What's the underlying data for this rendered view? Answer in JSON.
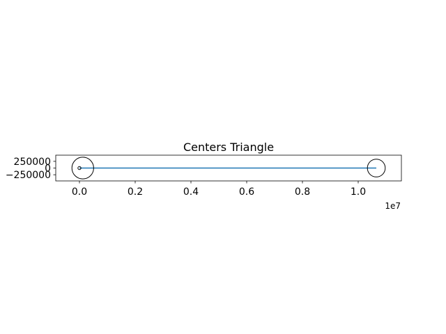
{
  "chart_data": {
    "type": "line",
    "title": "Centers Triangle",
    "xlabel": "",
    "ylabel": "",
    "x_offset_label": "1e7",
    "xlim": [
      -850000,
      11550000
    ],
    "ylim": [
      -480000,
      480000
    ],
    "x_ticks": [
      0,
      2000000,
      4000000,
      6000000,
      8000000,
      10000000
    ],
    "x_tick_labels": [
      "0.0",
      "0.2",
      "0.4",
      "0.6",
      "0.8",
      "1.0"
    ],
    "y_ticks": [
      250000,
      0,
      -250000
    ],
    "y_tick_labels": [
      "250000",
      "0",
      "−250000"
    ],
    "grid": false,
    "series": [
      {
        "color": "#1f77b4",
        "x": [
          0,
          10650000,
          0
        ],
        "y": [
          0,
          0,
          0
        ]
      }
    ],
    "circles": [
      {
        "cx": 120000,
        "cy": 0,
        "r": 390000,
        "color": "#000000"
      },
      {
        "cx": 10650000,
        "cy": 0,
        "r": 320000,
        "color": "#000000"
      },
      {
        "cx": 0,
        "cy": 0,
        "r": 55000,
        "color": "#000000"
      }
    ]
  }
}
